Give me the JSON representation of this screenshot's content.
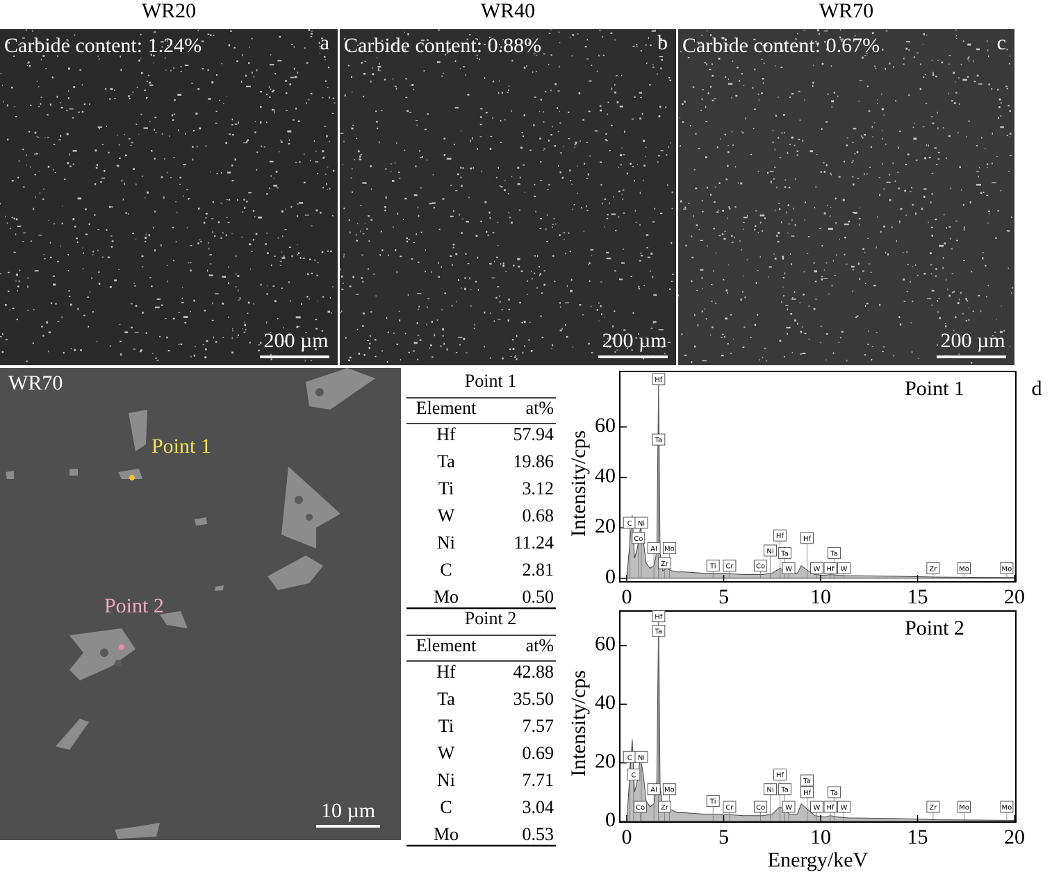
{
  "micrographs": [
    {
      "title": "WR20",
      "caption": "Carbide content: 1.24%",
      "letter": "a",
      "scale_bar": "200 µm"
    },
    {
      "title": "WR40",
      "caption": "Carbide content: 0.88%",
      "letter": "b",
      "scale_bar": "200 µm"
    },
    {
      "title": "WR70",
      "caption": "Carbide content: 0.67%",
      "letter": "c",
      "scale_bar": "200 µm"
    }
  ],
  "detail_image": {
    "title": "WR70",
    "points": [
      "Point 1",
      "Point 2"
    ],
    "scale_bar": "10 µm"
  },
  "tables": [
    {
      "title": "Point 1",
      "header": [
        "Element",
        "at%"
      ],
      "rows": [
        [
          "Hf",
          "57.94"
        ],
        [
          "Ta",
          "19.86"
        ],
        [
          "Ti",
          "3.12"
        ],
        [
          "W",
          "0.68"
        ],
        [
          "Ni",
          "11.24"
        ],
        [
          "C",
          "2.81"
        ],
        [
          "Mo",
          "0.50"
        ]
      ]
    },
    {
      "title": "Point 2",
      "header": [
        "Element",
        "at%"
      ],
      "rows": [
        [
          "Hf",
          "42.88"
        ],
        [
          "Ta",
          "35.50"
        ],
        [
          "Ti",
          "7.57"
        ],
        [
          "W",
          "0.69"
        ],
        [
          "Ni",
          "7.71"
        ],
        [
          "C",
          "3.04"
        ],
        [
          "Mo",
          "0.53"
        ]
      ]
    }
  ],
  "panel_letter": "d",
  "chart_data": [
    {
      "type": "area",
      "title": "Point 1",
      "y_label": "Intensity/cps",
      "color": "#bdbdbd",
      "x": [
        0,
        0.2,
        0.28,
        0.4,
        0.55,
        0.7,
        0.85,
        1.0,
        1.2,
        1.4,
        1.49,
        1.55,
        1.64,
        1.72,
        1.85,
        2.05,
        2.3,
        2.6,
        3.0,
        4.0,
        5,
        6,
        7,
        7.5,
        7.9,
        8.15,
        8.4,
        8.8,
        9.0,
        9.35,
        9.7,
        10.2,
        10.5,
        10.9,
        11.5,
        12,
        14,
        16,
        18,
        20
      ],
      "values": [
        0,
        18,
        25,
        8,
        12,
        20,
        15,
        6,
        4,
        5,
        8,
        12,
        78,
        10,
        3,
        4,
        3,
        2.5,
        2.5,
        2,
        2,
        1.5,
        1.5,
        2,
        4,
        3,
        2,
        2,
        5,
        3,
        1.5,
        1.2,
        1.5,
        1.2,
        1,
        1,
        0.8,
        0.5,
        0.4,
        0.3
      ],
      "xlim": [
        -0.36,
        20.07
      ],
      "ylim": [
        -1.4,
        82
      ],
      "xticks": [
        0,
        5,
        10,
        15,
        20
      ],
      "yticks": [
        0,
        20,
        40,
        60
      ],
      "annotations": [
        {
          "label": "Hf",
          "x": 1.64,
          "y": 79
        },
        {
          "label": "Ta",
          "x": 1.64,
          "y": 55
        },
        {
          "label": "C",
          "x": 0.15,
          "y": 22
        },
        {
          "label": "Ni",
          "x": 0.75,
          "y": 22
        },
        {
          "label": "Co",
          "x": 0.6,
          "y": 16
        },
        {
          "label": "Al",
          "x": 1.4,
          "y": 12
        },
        {
          "label": "Mo",
          "x": 2.2,
          "y": 12
        },
        {
          "label": "Zr",
          "x": 1.95,
          "y": 6
        },
        {
          "label": "Ti",
          "x": 4.45,
          "y": 5
        },
        {
          "label": "Cr",
          "x": 5.3,
          "y": 5
        },
        {
          "label": "Co",
          "x": 6.9,
          "y": 5
        },
        {
          "label": "Ni",
          "x": 7.4,
          "y": 11
        },
        {
          "label": "Hf",
          "x": 7.9,
          "y": 17
        },
        {
          "label": "Ta",
          "x": 8.15,
          "y": 10
        },
        {
          "label": "W",
          "x": 8.35,
          "y": 4
        },
        {
          "label": "Hf",
          "x": 9.3,
          "y": 16
        },
        {
          "label": "W",
          "x": 9.8,
          "y": 4
        },
        {
          "label": "Ta",
          "x": 10.7,
          "y": 10
        },
        {
          "label": "Hf",
          "x": 10.5,
          "y": 4
        },
        {
          "label": "W",
          "x": 11.2,
          "y": 4
        },
        {
          "label": "Zr",
          "x": 15.8,
          "y": 4
        },
        {
          "label": "Mo",
          "x": 17.4,
          "y": 4
        },
        {
          "label": "Mo",
          "x": 19.6,
          "y": 4
        }
      ]
    },
    {
      "type": "area",
      "title": "Point 2",
      "y_label": "Intensity/cps",
      "x_label": "Energy/keV",
      "color": "#bdbdbd",
      "x": [
        0,
        0.2,
        0.28,
        0.4,
        0.55,
        0.7,
        0.85,
        1.0,
        1.2,
        1.4,
        1.49,
        1.55,
        1.64,
        1.72,
        1.85,
        2.05,
        2.3,
        2.6,
        3.0,
        4.0,
        5,
        6,
        7,
        7.5,
        7.9,
        8.15,
        8.4,
        8.8,
        9.0,
        9.35,
        9.7,
        10.2,
        10.5,
        10.9,
        11.5,
        12,
        14,
        16,
        18,
        20
      ],
      "values": [
        0,
        20,
        28,
        10,
        14,
        22,
        16,
        7,
        5,
        6,
        10,
        14,
        70,
        12,
        4,
        5,
        4,
        3,
        3,
        2.5,
        2.5,
        2,
        2,
        2.5,
        5,
        4,
        2.5,
        2.5,
        6,
        4,
        2,
        1.5,
        2,
        1.5,
        1.2,
        1.2,
        1,
        0.6,
        0.5,
        0.4
      ],
      "xlim": [
        -0.36,
        20.07
      ],
      "ylim": [
        -0.2,
        71.8
      ],
      "xticks": [
        0,
        5,
        10,
        15,
        20
      ],
      "yticks": [
        0,
        20,
        40,
        60
      ],
      "annotations": [
        {
          "label": "Hf",
          "x": 1.64,
          "y": 70
        },
        {
          "label": "Ta",
          "x": 1.64,
          "y": 65
        },
        {
          "label": "C",
          "x": 0.15,
          "y": 22
        },
        {
          "label": "Ni",
          "x": 0.75,
          "y": 22
        },
        {
          "label": "C",
          "x": 0.35,
          "y": 16
        },
        {
          "label": "Al",
          "x": 1.4,
          "y": 11
        },
        {
          "label": "Mo",
          "x": 2.2,
          "y": 11
        },
        {
          "label": "Co",
          "x": 0.7,
          "y": 5
        },
        {
          "label": "Zr",
          "x": 1.95,
          "y": 5
        },
        {
          "label": "Ti",
          "x": 4.45,
          "y": 7
        },
        {
          "label": "Cr",
          "x": 5.3,
          "y": 5
        },
        {
          "label": "Co",
          "x": 6.9,
          "y": 5
        },
        {
          "label": "Ni",
          "x": 7.4,
          "y": 11
        },
        {
          "label": "Hf",
          "x": 7.9,
          "y": 16
        },
        {
          "label": "Ta",
          "x": 8.15,
          "y": 11
        },
        {
          "label": "W",
          "x": 8.35,
          "y": 5
        },
        {
          "label": "Ta",
          "x": 9.3,
          "y": 14
        },
        {
          "label": "Hf",
          "x": 9.3,
          "y": 10
        },
        {
          "label": "W",
          "x": 9.8,
          "y": 5
        },
        {
          "label": "Ta",
          "x": 10.7,
          "y": 10
        },
        {
          "label": "Hf",
          "x": 10.5,
          "y": 5
        },
        {
          "label": "W",
          "x": 11.2,
          "y": 5
        },
        {
          "label": "Zr",
          "x": 15.8,
          "y": 5
        },
        {
          "label": "Mo",
          "x": 17.4,
          "y": 5
        },
        {
          "label": "Mo",
          "x": 19.6,
          "y": 5
        }
      ]
    }
  ]
}
